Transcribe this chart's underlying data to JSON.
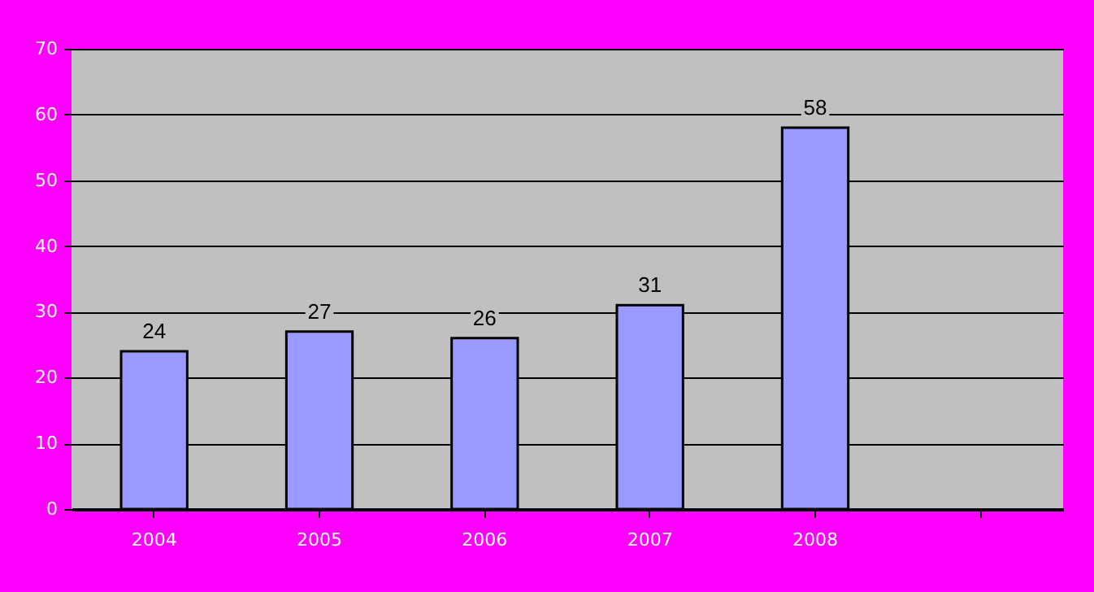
{
  "chart_data": {
    "type": "bar",
    "categories": [
      "2004",
      "2005",
      "2006",
      "2007",
      "2008",
      null
    ],
    "values": [
      24,
      27,
      26,
      31,
      58,
      null
    ],
    "color": "#9999ff",
    "ylim": [
      0,
      70
    ],
    "yticks": [
      0,
      10,
      20,
      30,
      40,
      50,
      60,
      70
    ],
    "grid": "y",
    "data_labels": true
  }
}
